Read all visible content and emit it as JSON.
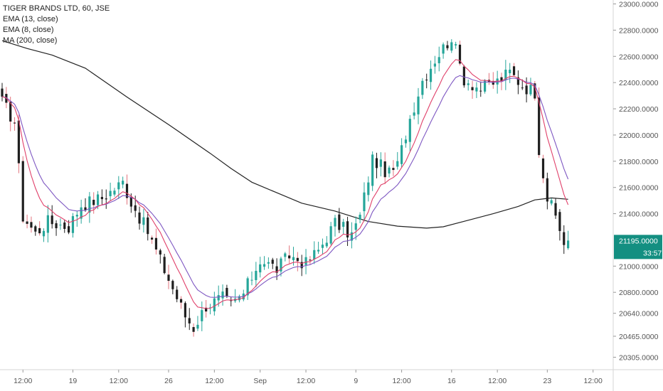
{
  "header": {
    "title": "TIGER BRANDS LTD, 60, JSE",
    "indicators": [
      "EMA (13, close)",
      "EMA (8, close)",
      "MA (200, close)"
    ]
  },
  "colors": {
    "up": "#26a69a",
    "down": "#1f1f1f",
    "wick_down": "#e2737d",
    "ema13": "#7e57c2",
    "ema8": "#e0406a",
    "ma200": "#222222",
    "price_tag": "#138f81"
  },
  "price_tag": {
    "price": "21195.0000",
    "countdown": "33:57"
  },
  "chart_data": {
    "type": "candlestick",
    "title": "TIGER BRANDS LTD, 60, JSE",
    "y_ticks": [
      23000,
      22800,
      22600,
      22400,
      22200,
      22000,
      21800,
      21600,
      21400,
      21195,
      21000,
      20800,
      20640,
      20465,
      20305
    ],
    "y_tick_labels": [
      "23000.0000",
      "22800.0000",
      "22600.0000",
      "22400.0000",
      "22200.0000",
      "22000.0000",
      "21800.0000",
      "21600.0000",
      "21400.0000",
      "21195.0000",
      "21000.0000",
      "20800.0000",
      "20640.0000",
      "20465.0000",
      "20305.0000"
    ],
    "x_tick_labels": [
      "12:00",
      "19",
      "12:00",
      "26",
      "12:00",
      "Sep",
      "12:00",
      "9",
      "12:00",
      "16",
      "12:00",
      "23",
      "12:00"
    ],
    "x_tick_index": [
      5,
      17,
      28,
      40,
      51,
      62,
      73,
      85,
      96,
      108,
      119,
      131,
      142
    ],
    "legend": [
      "EMA (13, close)",
      "EMA (8, close)",
      "MA (200, close)"
    ],
    "close_anchors": [
      [
        0,
        22250
      ],
      [
        3,
        22100
      ],
      [
        5,
        21380
      ],
      [
        8,
        21250
      ],
      [
        11,
        21340
      ],
      [
        16,
        21300
      ],
      [
        19,
        21470
      ],
      [
        24,
        21520
      ],
      [
        29,
        21640
      ],
      [
        31,
        21490
      ],
      [
        35,
        21260
      ],
      [
        40,
        20900
      ],
      [
        44,
        20620
      ],
      [
        46,
        20530
      ],
      [
        49,
        20700
      ],
      [
        53,
        20760
      ],
      [
        55,
        20700
      ],
      [
        58,
        20790
      ],
      [
        62,
        21050
      ],
      [
        66,
        20980
      ],
      [
        69,
        21080
      ],
      [
        73,
        21020
      ],
      [
        76,
        21120
      ],
      [
        80,
        21330
      ],
      [
        84,
        21240
      ],
      [
        86,
        21380
      ],
      [
        89,
        21820
      ],
      [
        93,
        21700
      ],
      [
        95,
        21770
      ],
      [
        98,
        22130
      ],
      [
        101,
        22420
      ],
      [
        104,
        22580
      ],
      [
        108,
        22750
      ],
      [
        111,
        22430
      ],
      [
        115,
        22350
      ],
      [
        119,
        22410
      ],
      [
        122,
        22480
      ],
      [
        125,
        22380
      ],
      [
        128,
        22330
      ],
      [
        129,
        21900
      ],
      [
        131,
        21520
      ],
      [
        133,
        21380
      ],
      [
        135,
        21180
      ],
      [
        136,
        21195
      ]
    ],
    "ma200": [
      [
        0,
        22720
      ],
      [
        6,
        22660
      ],
      [
        12,
        22610
      ],
      [
        20,
        22510
      ],
      [
        30,
        22290
      ],
      [
        40,
        22080
      ],
      [
        50,
        21860
      ],
      [
        55,
        21745
      ],
      [
        60,
        21640
      ],
      [
        66,
        21560
      ],
      [
        72,
        21480
      ],
      [
        80,
        21420
      ],
      [
        88,
        21340
      ],
      [
        95,
        21305
      ],
      [
        102,
        21290
      ],
      [
        106,
        21300
      ],
      [
        112,
        21350
      ],
      [
        118,
        21400
      ],
      [
        124,
        21455
      ],
      [
        128,
        21505
      ],
      [
        132,
        21520
      ],
      [
        136,
        21510
      ]
    ],
    "ylim": [
      20210,
      23030
    ],
    "n_candles": 137
  }
}
